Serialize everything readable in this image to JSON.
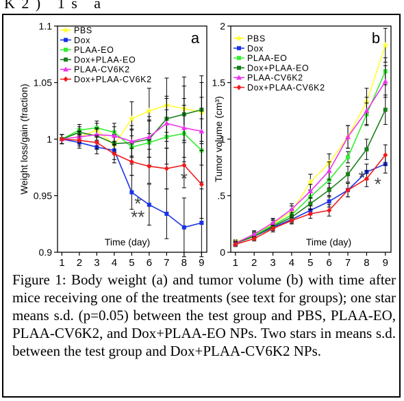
{
  "header_fragment": "K 2 )   1 s   a",
  "caption": "Figure 1: Body weight (a) and tumor volume (b) with time after mice receiving one of the treatments (see text for groups); one star means s.d. (p=0.05) between the test group and PBS, PLAA-EO, PLAA-CV6K2, and Dox+PLAA-EO NPs. Two stars in means s.d. between the test group and Dox+PLAA-CV6K2 NPs.",
  "colors": {
    "PBS": "#ffff33",
    "Dox": "#1a33e6",
    "PLAA-EO": "#33ee33",
    "Dox+PLAA-EO": "#1a801a",
    "PLAA-CV6K2": "#ee33ee",
    "Dox+PLAA-CV6K2": "#ee1a1a"
  },
  "chart_data": [
    {
      "type": "line",
      "panel_label": "a",
      "ylabel": "Weight loss/gain (fraction)",
      "xlabel": "Time (day)",
      "x": [
        1,
        2,
        3,
        4,
        5,
        6,
        7,
        8,
        9
      ],
      "xlim": [
        0.75,
        9.3
      ],
      "ylim": [
        0.9,
        1.1
      ],
      "yticks": [
        0.9,
        0.95,
        1,
        1.05,
        1.1
      ],
      "ytick_labels": [
        "0.9",
        "0.95",
        "1",
        "1.05",
        "1.1"
      ],
      "legend_position": "top-left",
      "series": [
        {
          "name": "PBS",
          "values": [
            1.0,
            1.002,
            1.008,
            0.995,
            1.018,
            1.025,
            1.03,
            1.027,
            1.024
          ],
          "err": [
            0.004,
            0.005,
            0.006,
            0.008,
            0.015,
            0.02,
            0.024,
            0.028,
            0.026
          ]
        },
        {
          "name": "Dox",
          "values": [
            1.0,
            0.997,
            0.993,
            0.99,
            0.953,
            0.942,
            0.934,
            0.922,
            0.926
          ],
          "err": [
            0.004,
            0.005,
            0.006,
            0.008,
            0.015,
            0.018,
            0.022,
            0.026,
            0.03
          ]
        },
        {
          "name": "PLAA-EO",
          "values": [
            1.0,
            1.008,
            1.01,
            1.006,
            0.993,
            0.997,
            1.002,
            1.005,
            0.99
          ],
          "err": [
            0.004,
            0.005,
            0.006,
            0.008,
            0.015,
            0.02,
            0.024,
            0.025,
            0.028
          ]
        },
        {
          "name": "Dox+PLAA-EO",
          "values": [
            1.0,
            1.006,
            1.003,
            0.996,
            0.997,
            1.0,
            1.018,
            1.022,
            1.026
          ],
          "err": [
            0.004,
            0.005,
            0.006,
            0.008,
            0.012,
            0.016,
            0.02,
            0.025,
            0.03
          ]
        },
        {
          "name": "PLAA-CV6K2",
          "values": [
            1.0,
            1.002,
            1.004,
            1.003,
            0.998,
            1.002,
            1.014,
            1.01,
            1.007
          ],
          "err": [
            0.004,
            0.005,
            0.006,
            0.008,
            0.014,
            0.018,
            0.022,
            0.026,
            0.03
          ]
        },
        {
          "name": "Dox+PLAA-CV6K2",
          "values": [
            1.0,
            0.999,
            0.997,
            0.987,
            0.98,
            0.976,
            0.974,
            0.977,
            0.96
          ],
          "err": [
            0.004,
            0.005,
            0.006,
            0.008,
            0.012,
            0.015,
            0.018,
            0.02,
            0.03
          ]
        }
      ],
      "annotations": [
        {
          "text": "*",
          "x": 8.0,
          "y": 0.967
        },
        {
          "text": "*",
          "x": 5.35,
          "y": 0.945
        },
        {
          "text": "**",
          "x": 5.35,
          "y": 0.933
        }
      ]
    },
    {
      "type": "line",
      "panel_label": "b",
      "ylabel": "Tumor volume (cm³)",
      "xlabel": "Time (day)",
      "x": [
        1,
        2,
        3,
        4,
        5,
        6,
        7,
        8,
        9
      ],
      "xlim": [
        0.75,
        9.3
      ],
      "ylim": [
        0,
        2
      ],
      "yticks": [
        0,
        0.5,
        1,
        1.5,
        2
      ],
      "ytick_labels": [
        "0",
        ".5",
        "1",
        "1.5",
        "2"
      ],
      "legend_position": "top-left",
      "series": [
        {
          "name": "PBS",
          "values": [
            0.09,
            0.15,
            0.25,
            0.36,
            0.62,
            0.79,
            1.02,
            1.33,
            1.83
          ],
          "err": [
            0.02,
            0.03,
            0.04,
            0.05,
            0.07,
            0.08,
            0.1,
            0.12,
            0.15
          ]
        },
        {
          "name": "Dox",
          "values": [
            0.08,
            0.14,
            0.22,
            0.29,
            0.37,
            0.45,
            0.55,
            0.71,
            0.78
          ],
          "err": [
            0.02,
            0.02,
            0.03,
            0.03,
            0.04,
            0.05,
            0.06,
            0.07,
            0.08
          ]
        },
        {
          "name": "PLAA-EO",
          "values": [
            0.08,
            0.15,
            0.24,
            0.33,
            0.49,
            0.64,
            0.84,
            1.22,
            1.6
          ],
          "err": [
            0.02,
            0.03,
            0.04,
            0.05,
            0.06,
            0.07,
            0.05,
            0.1,
            0.12
          ]
        },
        {
          "name": "Dox+PLAA-EO",
          "values": [
            0.08,
            0.14,
            0.23,
            0.31,
            0.43,
            0.55,
            0.69,
            0.91,
            1.26
          ],
          "err": [
            0.02,
            0.03,
            0.03,
            0.04,
            0.05,
            0.06,
            0.07,
            0.09,
            0.13
          ]
        },
        {
          "name": "PLAA-CV6K2",
          "values": [
            0.08,
            0.16,
            0.26,
            0.38,
            0.54,
            0.72,
            1.02,
            1.25,
            1.51
          ],
          "err": [
            0.02,
            0.03,
            0.04,
            0.05,
            0.06,
            0.08,
            0.1,
            0.12,
            0.14
          ]
        },
        {
          "name": "Dox+PLAA-CV6K2",
          "values": [
            0.07,
            0.12,
            0.21,
            0.28,
            0.34,
            0.37,
            0.55,
            0.65,
            0.86
          ],
          "err": [
            0.02,
            0.02,
            0.03,
            0.03,
            0.04,
            0.05,
            0.06,
            0.07,
            0.09
          ]
        }
      ],
      "annotations": [
        {
          "text": "*",
          "x": 7.75,
          "y": 0.68
        },
        {
          "text": "*",
          "x": 8.6,
          "y": 0.62
        }
      ]
    }
  ]
}
